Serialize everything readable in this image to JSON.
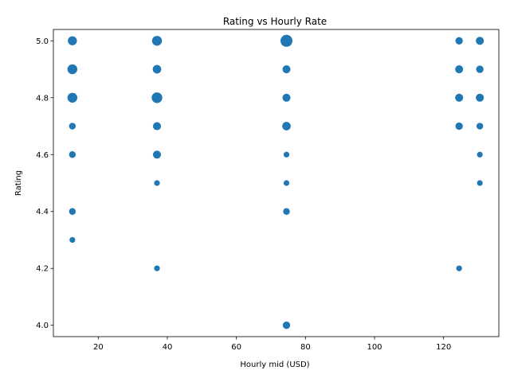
{
  "chart_data": {
    "type": "scatter",
    "title": "Rating vs Hourly Rate",
    "xlabel": "Hourly mid (USD)",
    "ylabel": "Rating",
    "xlim": [
      7,
      136
    ],
    "ylim": [
      3.96,
      5.04
    ],
    "xticks": [
      20,
      40,
      60,
      80,
      100,
      120
    ],
    "yticks": [
      4.0,
      4.2,
      4.4,
      4.6,
      4.8,
      5.0
    ],
    "grid": false,
    "marker_color": "#1f77b4",
    "marker_size_meaning": "relative count",
    "points": [
      {
        "x": 12.5,
        "y": 5.0,
        "size": 3
      },
      {
        "x": 12.5,
        "y": 4.9,
        "size": 4
      },
      {
        "x": 12.5,
        "y": 4.8,
        "size": 4
      },
      {
        "x": 12.5,
        "y": 4.7,
        "size": 1
      },
      {
        "x": 12.5,
        "y": 4.6,
        "size": 1
      },
      {
        "x": 12.5,
        "y": 4.4,
        "size": 1
      },
      {
        "x": 12.5,
        "y": 4.3,
        "size": 0.5
      },
      {
        "x": 37,
        "y": 5.0,
        "size": 4
      },
      {
        "x": 37,
        "y": 4.9,
        "size": 2.5
      },
      {
        "x": 37,
        "y": 4.8,
        "size": 5
      },
      {
        "x": 37,
        "y": 4.7,
        "size": 2
      },
      {
        "x": 37,
        "y": 4.6,
        "size": 2
      },
      {
        "x": 37,
        "y": 4.5,
        "size": 0.5
      },
      {
        "x": 37,
        "y": 4.2,
        "size": 0.5
      },
      {
        "x": 74.5,
        "y": 5.0,
        "size": 7
      },
      {
        "x": 74.5,
        "y": 4.9,
        "size": 2
      },
      {
        "x": 74.5,
        "y": 4.8,
        "size": 2
      },
      {
        "x": 74.5,
        "y": 4.7,
        "size": 2.5
      },
      {
        "x": 74.5,
        "y": 4.6,
        "size": 0.5
      },
      {
        "x": 74.5,
        "y": 4.5,
        "size": 0.5
      },
      {
        "x": 74.5,
        "y": 4.4,
        "size": 1
      },
      {
        "x": 74.5,
        "y": 4.0,
        "size": 1.5
      },
      {
        "x": 124.5,
        "y": 5.0,
        "size": 1.5
      },
      {
        "x": 124.5,
        "y": 4.9,
        "size": 2
      },
      {
        "x": 124.5,
        "y": 4.8,
        "size": 2
      },
      {
        "x": 124.5,
        "y": 4.7,
        "size": 1.5
      },
      {
        "x": 124.5,
        "y": 4.2,
        "size": 0.5
      },
      {
        "x": 130.5,
        "y": 5.0,
        "size": 2
      },
      {
        "x": 130.5,
        "y": 4.9,
        "size": 1.5
      },
      {
        "x": 130.5,
        "y": 4.8,
        "size": 2
      },
      {
        "x": 130.5,
        "y": 4.7,
        "size": 1
      },
      {
        "x": 130.5,
        "y": 4.6,
        "size": 0.5
      },
      {
        "x": 130.5,
        "y": 4.5,
        "size": 0.5
      }
    ]
  }
}
